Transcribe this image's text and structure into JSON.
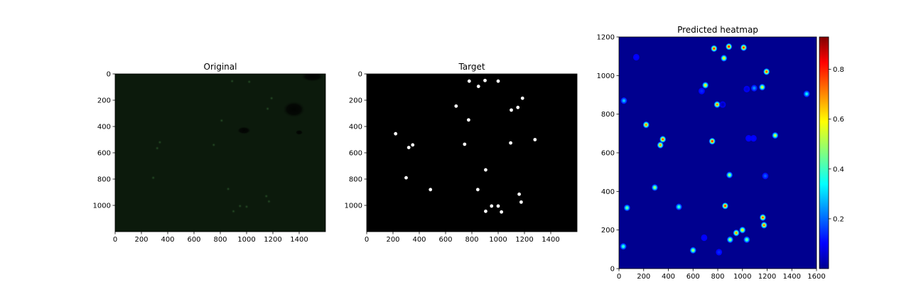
{
  "chart_data": [
    {
      "type": "image",
      "title": "Original",
      "x_ticks": [
        "0",
        "200",
        "400",
        "600",
        "800",
        "1000",
        "1200",
        "1400"
      ],
      "y_ticks": [
        "0",
        "200",
        "400",
        "600",
        "800",
        "1000"
      ],
      "xlim": [
        0,
        1600
      ],
      "ylim": [
        1200,
        0
      ],
      "background_color": "#0c1a0c",
      "dim_spots": [
        {
          "x": 890,
          "y": 55
        },
        {
          "x": 1020,
          "y": 60
        },
        {
          "x": 1190,
          "y": 185
        },
        {
          "x": 1160,
          "y": 265
        },
        {
          "x": 810,
          "y": 355
        },
        {
          "x": 340,
          "y": 520
        },
        {
          "x": 320,
          "y": 565
        },
        {
          "x": 750,
          "y": 540
        },
        {
          "x": 290,
          "y": 790
        },
        {
          "x": 860,
          "y": 875
        },
        {
          "x": 1150,
          "y": 930
        },
        {
          "x": 1170,
          "y": 970
        },
        {
          "x": 950,
          "y": 1005
        },
        {
          "x": 1000,
          "y": 1010
        },
        {
          "x": 900,
          "y": 1045
        }
      ],
      "dark_blobs": [
        {
          "x": 1360,
          "y": 270,
          "rx": 90,
          "ry": 65
        },
        {
          "x": 980,
          "y": 430,
          "rx": 55,
          "ry": 30
        },
        {
          "x": 1400,
          "y": 445,
          "rx": 30,
          "ry": 20
        },
        {
          "x": 1500,
          "y": 20,
          "rx": 90,
          "ry": 40
        }
      ]
    },
    {
      "type": "scatter",
      "title": "Target",
      "x_ticks": [
        "0",
        "200",
        "400",
        "600",
        "800",
        "1000",
        "1200",
        "1400"
      ],
      "y_ticks": [
        "0",
        "200",
        "400",
        "600",
        "800",
        "1000"
      ],
      "xlim": [
        0,
        1600
      ],
      "ylim": [
        1200,
        0
      ],
      "background_color": "#000000",
      "point_color": "#ffffff",
      "points": [
        {
          "x": 780,
          "y": 55
        },
        {
          "x": 900,
          "y": 50
        },
        {
          "x": 1000,
          "y": 55
        },
        {
          "x": 850,
          "y": 95
        },
        {
          "x": 1185,
          "y": 185
        },
        {
          "x": 680,
          "y": 245
        },
        {
          "x": 1150,
          "y": 255
        },
        {
          "x": 1100,
          "y": 275
        },
        {
          "x": 775,
          "y": 350
        },
        {
          "x": 220,
          "y": 455
        },
        {
          "x": 1280,
          "y": 500
        },
        {
          "x": 1095,
          "y": 525
        },
        {
          "x": 745,
          "y": 535
        },
        {
          "x": 350,
          "y": 540
        },
        {
          "x": 320,
          "y": 560
        },
        {
          "x": 905,
          "y": 730
        },
        {
          "x": 300,
          "y": 790
        },
        {
          "x": 485,
          "y": 880
        },
        {
          "x": 845,
          "y": 880
        },
        {
          "x": 1160,
          "y": 915
        },
        {
          "x": 1175,
          "y": 975
        },
        {
          "x": 950,
          "y": 1005
        },
        {
          "x": 1000,
          "y": 1005
        },
        {
          "x": 905,
          "y": 1045
        },
        {
          "x": 1025,
          "y": 1050
        }
      ]
    },
    {
      "type": "heatmap",
      "title": "Predicted heatmap",
      "x_ticks": [
        "0",
        "200",
        "400",
        "600",
        "800",
        "1000",
        "1200",
        "1400",
        "1600"
      ],
      "y_ticks": [
        "0",
        "200",
        "400",
        "600",
        "800",
        "1000",
        "1200"
      ],
      "xlim": [
        0,
        1600
      ],
      "ylim": [
        0,
        1200
      ],
      "background_color": "#00008f",
      "colorbar": {
        "min": 0.0,
        "max": 0.93,
        "ticks": [
          "0.2",
          "0.4",
          "0.6",
          "0.8"
        ],
        "tick_values": [
          0.2,
          0.4,
          0.6,
          0.8
        ]
      },
      "peaks": [
        {
          "x": 770,
          "y": 1140,
          "v": 0.78
        },
        {
          "x": 890,
          "y": 1150,
          "v": 0.8
        },
        {
          "x": 1010,
          "y": 1145,
          "v": 0.78
        },
        {
          "x": 850,
          "y": 1090,
          "v": 0.6
        },
        {
          "x": 1195,
          "y": 1020,
          "v": 0.75
        },
        {
          "x": 700,
          "y": 950,
          "v": 0.6
        },
        {
          "x": 1160,
          "y": 940,
          "v": 0.55
        },
        {
          "x": 1095,
          "y": 935,
          "v": 0.25
        },
        {
          "x": 1520,
          "y": 905,
          "v": 0.35
        },
        {
          "x": 40,
          "y": 870,
          "v": 0.3
        },
        {
          "x": 795,
          "y": 850,
          "v": 0.7
        },
        {
          "x": 220,
          "y": 745,
          "v": 0.7
        },
        {
          "x": 1265,
          "y": 690,
          "v": 0.55
        },
        {
          "x": 355,
          "y": 670,
          "v": 0.75
        },
        {
          "x": 755,
          "y": 660,
          "v": 0.78
        },
        {
          "x": 335,
          "y": 640,
          "v": 0.68
        },
        {
          "x": 1050,
          "y": 675,
          "v": 0.12
        },
        {
          "x": 1090,
          "y": 675,
          "v": 0.12
        },
        {
          "x": 895,
          "y": 485,
          "v": 0.5
        },
        {
          "x": 1185,
          "y": 480,
          "v": 0.2
        },
        {
          "x": 290,
          "y": 420,
          "v": 0.5
        },
        {
          "x": 65,
          "y": 315,
          "v": 0.45
        },
        {
          "x": 485,
          "y": 320,
          "v": 0.4
        },
        {
          "x": 860,
          "y": 325,
          "v": 0.78
        },
        {
          "x": 1165,
          "y": 265,
          "v": 0.75
        },
        {
          "x": 1175,
          "y": 225,
          "v": 0.72
        },
        {
          "x": 950,
          "y": 185,
          "v": 0.68
        },
        {
          "x": 1000,
          "y": 200,
          "v": 0.6
        },
        {
          "x": 900,
          "y": 150,
          "v": 0.5
        },
        {
          "x": 1035,
          "y": 150,
          "v": 0.45
        },
        {
          "x": 35,
          "y": 115,
          "v": 0.4
        },
        {
          "x": 600,
          "y": 95,
          "v": 0.5
        },
        {
          "x": 810,
          "y": 85,
          "v": 0.15
        },
        {
          "x": 690,
          "y": 160,
          "v": 0.12
        },
        {
          "x": 140,
          "y": 1095,
          "v": 0.12
        },
        {
          "x": 670,
          "y": 920,
          "v": 0.15
        },
        {
          "x": 1035,
          "y": 930,
          "v": 0.08
        },
        {
          "x": 840,
          "y": 850,
          "v": 0.05
        }
      ]
    }
  ]
}
